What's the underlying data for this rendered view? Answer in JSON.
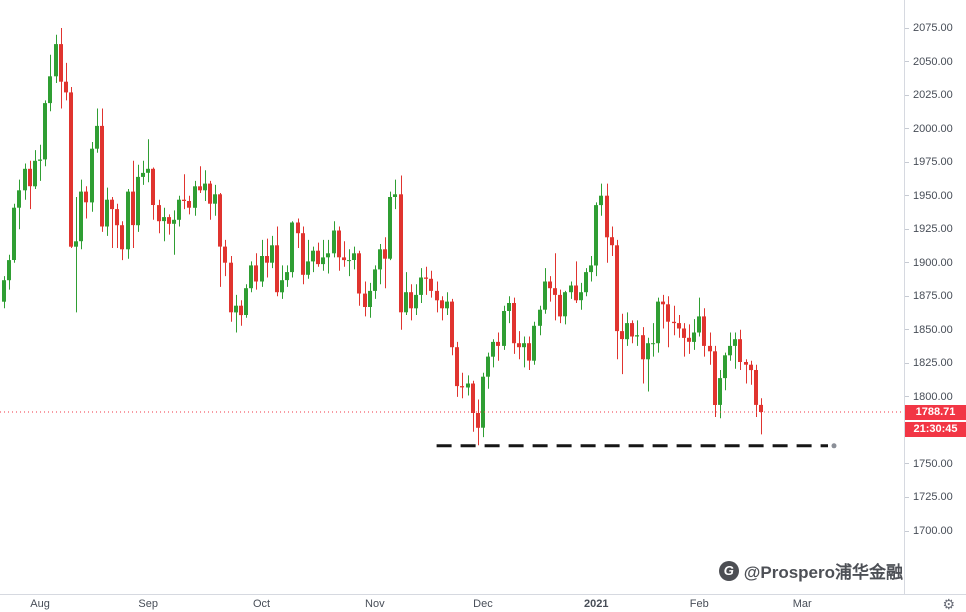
{
  "chart_data": {
    "type": "candlestick",
    "description": "Gold daily candlestick chart, Aug 2020 - Feb 2021, light theme",
    "price_axis": {
      "min": 1700,
      "max": 2075,
      "step": 25,
      "labels": [
        "2075.00",
        "2050.00",
        "2025.00",
        "2000.00",
        "1975.00",
        "1950.00",
        "1925.00",
        "1900.00",
        "1875.00",
        "1850.00",
        "1825.00",
        "1800.00",
        "1775.00",
        "1750.00",
        "1725.00",
        "1700.00"
      ]
    },
    "time_axis": {
      "markers": [
        {
          "label": "Aug",
          "i": 7
        },
        {
          "label": "Sep",
          "i": 28
        },
        {
          "label": "Oct",
          "i": 50
        },
        {
          "label": "Nov",
          "i": 72
        },
        {
          "label": "Dec",
          "i": 93
        },
        {
          "label": "2021",
          "i": 115
        },
        {
          "label": "Feb",
          "i": 135
        },
        {
          "label": "Mar",
          "i": 155
        }
      ]
    },
    "current_price": 1788.71,
    "current_price_label": "1788.71",
    "countdown": "21:30:45",
    "support_trendline": {
      "price": 1763.5,
      "i_start": 84,
      "i_end": 160,
      "style": "dashed",
      "color": "#161616"
    },
    "colors": {
      "up": "#2f9e33",
      "down": "#e0342f",
      "price_line": "#f23645",
      "badge_bg": "#f23645",
      "badge_text": "#ffffff",
      "axis_text": "#474d57"
    },
    "candles": [
      [
        1871,
        1890,
        1866,
        1887
      ],
      [
        1887,
        1906,
        1880,
        1902
      ],
      [
        1902,
        1944,
        1900,
        1941
      ],
      [
        1941,
        1962,
        1925,
        1954
      ],
      [
        1954,
        1974,
        1947,
        1970
      ],
      [
        1970,
        1976,
        1940,
        1957
      ],
      [
        1957,
        1984,
        1955,
        1976
      ],
      [
        1976,
        1988,
        1961,
        1977
      ],
      [
        1977,
        2021,
        1972,
        2019
      ],
      [
        2019,
        2055,
        2013,
        2039
      ],
      [
        2039,
        2070,
        2034,
        2063
      ],
      [
        2063,
        2075,
        2015,
        2035
      ],
      [
        2035,
        2049,
        2021,
        2027
      ],
      [
        2027,
        2031,
        1911,
        1912
      ],
      [
        1912,
        1949,
        1863,
        1916
      ],
      [
        1916,
        1962,
        1910,
        1953
      ],
      [
        1953,
        1957,
        1933,
        1945
      ],
      [
        1945,
        1990,
        1938,
        1985
      ],
      [
        1985,
        2015,
        1982,
        2002
      ],
      [
        2002,
        2015,
        1923,
        1927
      ],
      [
        1927,
        1956,
        1920,
        1947
      ],
      [
        1947,
        1949,
        1911,
        1940
      ],
      [
        1940,
        1944,
        1911,
        1928
      ],
      [
        1928,
        1931,
        1902,
        1910
      ],
      [
        1910,
        1955,
        1903,
        1953
      ],
      [
        1953,
        1976,
        1911,
        1928
      ],
      [
        1928,
        1973,
        1923,
        1964
      ],
      [
        1964,
        1976,
        1958,
        1967
      ],
      [
        1967,
        1992,
        1960,
        1970
      ],
      [
        1970,
        1971,
        1932,
        1943
      ],
      [
        1943,
        1947,
        1922,
        1931
      ],
      [
        1931,
        1941,
        1916,
        1934
      ],
      [
        1934,
        1936,
        1921,
        1929
      ],
      [
        1929,
        1939,
        1906,
        1932
      ],
      [
        1932,
        1950,
        1927,
        1947
      ],
      [
        1947,
        1966,
        1940,
        1946
      ],
      [
        1946,
        1950,
        1936,
        1941
      ],
      [
        1941,
        1961,
        1935,
        1957
      ],
      [
        1957,
        1972,
        1952,
        1954
      ],
      [
        1954,
        1969,
        1946,
        1959
      ],
      [
        1959,
        1961,
        1932,
        1944
      ],
      [
        1944,
        1958,
        1935,
        1951
      ],
      [
        1951,
        1952,
        1882,
        1912
      ],
      [
        1912,
        1917,
        1890,
        1900
      ],
      [
        1900,
        1905,
        1856,
        1863
      ],
      [
        1863,
        1876,
        1848,
        1868
      ],
      [
        1868,
        1872,
        1853,
        1861
      ],
      [
        1861,
        1884,
        1859,
        1881
      ],
      [
        1881,
        1901,
        1878,
        1898
      ],
      [
        1898,
        1907,
        1880,
        1886
      ],
      [
        1886,
        1917,
        1882,
        1905
      ],
      [
        1905,
        1918,
        1889,
        1900
      ],
      [
        1900,
        1920,
        1896,
        1913
      ],
      [
        1913,
        1927,
        1875,
        1878
      ],
      [
        1878,
        1898,
        1873,
        1887
      ],
      [
        1887,
        1898,
        1882,
        1893
      ],
      [
        1893,
        1931,
        1889,
        1930
      ],
      [
        1930,
        1933,
        1911,
        1922
      ],
      [
        1922,
        1927,
        1884,
        1891
      ],
      [
        1891,
        1917,
        1888,
        1901
      ],
      [
        1901,
        1912,
        1893,
        1909
      ],
      [
        1909,
        1915,
        1897,
        1899
      ],
      [
        1899,
        1917,
        1894,
        1904
      ],
      [
        1904,
        1917,
        1892,
        1907
      ],
      [
        1907,
        1931,
        1904,
        1924
      ],
      [
        1924,
        1927,
        1894,
        1904
      ],
      [
        1904,
        1916,
        1897,
        1902
      ],
      [
        1902,
        1910,
        1890,
        1902
      ],
      [
        1902,
        1912,
        1895,
        1907
      ],
      [
        1907,
        1909,
        1868,
        1877
      ],
      [
        1877,
        1886,
        1860,
        1867
      ],
      [
        1867,
        1885,
        1859,
        1879
      ],
      [
        1879,
        1898,
        1873,
        1895
      ],
      [
        1895,
        1914,
        1884,
        1910
      ],
      [
        1910,
        1919,
        1881,
        1903
      ],
      [
        1903,
        1953,
        1902,
        1949
      ],
      [
        1949,
        1962,
        1940,
        1951
      ],
      [
        1951,
        1965,
        1850,
        1863
      ],
      [
        1863,
        1893,
        1861,
        1878
      ],
      [
        1878,
        1884,
        1857,
        1866
      ],
      [
        1866,
        1884,
        1861,
        1876
      ],
      [
        1876,
        1896,
        1870,
        1889
      ],
      [
        1889,
        1897,
        1876,
        1888
      ],
      [
        1888,
        1894,
        1874,
        1879
      ],
      [
        1879,
        1886,
        1863,
        1872
      ],
      [
        1872,
        1875,
        1857,
        1866
      ],
      [
        1866,
        1878,
        1861,
        1871
      ],
      [
        1871,
        1873,
        1831,
        1837
      ],
      [
        1837,
        1841,
        1800,
        1808
      ],
      [
        1808,
        1818,
        1799,
        1807
      ],
      [
        1807,
        1816,
        1801,
        1810
      ],
      [
        1810,
        1812,
        1774,
        1788
      ],
      [
        1788,
        1798,
        1764,
        1777
      ],
      [
        1777,
        1818,
        1770,
        1815
      ],
      [
        1815,
        1833,
        1806,
        1830
      ],
      [
        1830,
        1843,
        1822,
        1841
      ],
      [
        1841,
        1848,
        1827,
        1838
      ],
      [
        1838,
        1868,
        1835,
        1864
      ],
      [
        1864,
        1875,
        1855,
        1870
      ],
      [
        1870,
        1874,
        1832,
        1840
      ],
      [
        1840,
        1849,
        1828,
        1837
      ],
      [
        1837,
        1845,
        1822,
        1840
      ],
      [
        1840,
        1845,
        1820,
        1827
      ],
      [
        1827,
        1856,
        1824,
        1853
      ],
      [
        1853,
        1868,
        1846,
        1865
      ],
      [
        1865,
        1896,
        1862,
        1886
      ],
      [
        1886,
        1890,
        1871,
        1881
      ],
      [
        1881,
        1907,
        1857,
        1876
      ],
      [
        1876,
        1880,
        1855,
        1860
      ],
      [
        1860,
        1879,
        1854,
        1878
      ],
      [
        1878,
        1886,
        1873,
        1883
      ],
      [
        1883,
        1901,
        1870,
        1872
      ],
      [
        1872,
        1885,
        1865,
        1878
      ],
      [
        1878,
        1896,
        1875,
        1893
      ],
      [
        1893,
        1905,
        1886,
        1898
      ],
      [
        1898,
        1945,
        1890,
        1943
      ],
      [
        1943,
        1959,
        1935,
        1950
      ],
      [
        1950,
        1959,
        1900,
        1919
      ],
      [
        1919,
        1927,
        1905,
        1913
      ],
      [
        1913,
        1917,
        1828,
        1849
      ],
      [
        1849,
        1862,
        1817,
        1843
      ],
      [
        1843,
        1863,
        1838,
        1855
      ],
      [
        1855,
        1857,
        1840,
        1845
      ],
      [
        1845,
        1857,
        1838,
        1846
      ],
      [
        1846,
        1852,
        1810,
        1828
      ],
      [
        1828,
        1844,
        1804,
        1840
      ],
      [
        1840,
        1855,
        1830,
        1840
      ],
      [
        1840,
        1874,
        1833,
        1871
      ],
      [
        1871,
        1876,
        1851,
        1869
      ],
      [
        1869,
        1875,
        1837,
        1856
      ],
      [
        1856,
        1868,
        1846,
        1855
      ],
      [
        1855,
        1861,
        1844,
        1851
      ],
      [
        1851,
        1855,
        1830,
        1844
      ],
      [
        1844,
        1854,
        1832,
        1841
      ],
      [
        1841,
        1858,
        1835,
        1848
      ],
      [
        1848,
        1874,
        1845,
        1860
      ],
      [
        1860,
        1866,
        1830,
        1838
      ],
      [
        1838,
        1848,
        1824,
        1834
      ],
      [
        1834,
        1838,
        1785,
        1794
      ],
      [
        1794,
        1820,
        1784,
        1814
      ],
      [
        1814,
        1833,
        1805,
        1831
      ],
      [
        1831,
        1848,
        1827,
        1838
      ],
      [
        1838,
        1848,
        1821,
        1843
      ],
      [
        1843,
        1850,
        1820,
        1826
      ],
      [
        1826,
        1828,
        1810,
        1824
      ],
      [
        1824,
        1827,
        1809,
        1820
      ],
      [
        1820,
        1824,
        1785,
        1794
      ],
      [
        1794,
        1799,
        1772,
        1788.71
      ]
    ]
  },
  "watermark": {
    "handle": "@Prospero浦华金融",
    "logo_glyph": "G"
  },
  "axis_ui": {
    "gear_icon": "⚙"
  }
}
